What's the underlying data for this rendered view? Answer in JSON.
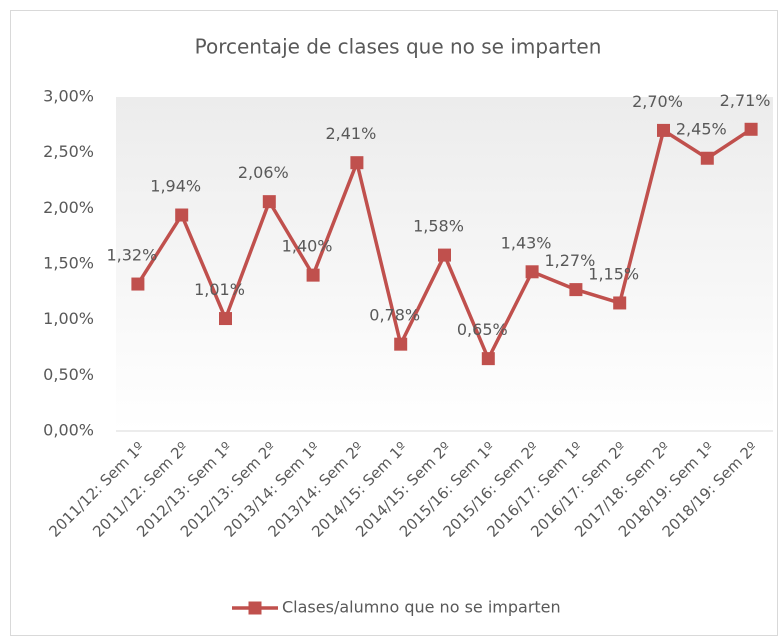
{
  "chart_data": {
    "type": "line",
    "title": "Porcentaje de clases que no se imparten",
    "categories": [
      "2011/12: Sem 1º",
      "2011/12: Sem 2º",
      "2012/13: Sem 1º",
      "2012/13: Sem 2º",
      "2013/14: Sem 1º",
      "2013/14: Sem 2º",
      "2014/15: Sem 1º",
      "2014/15: Sem 2º",
      "2015/16: Sem 1º",
      "2015/16: Sem 2º",
      "2016/17: Sem 1º",
      "2016/17: Sem 2º",
      "2017/18: Sem 2º",
      "2018/19: Sem 1º",
      "2018/19: Sem 2º"
    ],
    "series": [
      {
        "name": "Clases/alumno que no se imparten",
        "color": "#c0504d",
        "values": [
          1.32,
          1.94,
          1.01,
          2.06,
          1.4,
          2.41,
          0.78,
          1.58,
          0.65,
          1.43,
          1.27,
          1.15,
          2.7,
          2.45,
          2.71
        ],
        "value_labels": [
          "1,32%",
          "1,94%",
          "1,01%",
          "2,06%",
          "1,40%",
          "2,41%",
          "0,78%",
          "1,58%",
          "0,65%",
          "1,43%",
          "1,27%",
          "1,15%",
          "2,70%",
          "2,45%",
          "2,71%"
        ]
      }
    ],
    "ylim": [
      0,
      3
    ],
    "yticks": [
      {
        "value": 0,
        "label": "0,00%"
      },
      {
        "value": 0.5,
        "label": "0,50%"
      },
      {
        "value": 1,
        "label": "1,00%"
      },
      {
        "value": 1.5,
        "label": "1,50%"
      },
      {
        "value": 2,
        "label": "2,00%"
      },
      {
        "value": 2.5,
        "label": "2,50%"
      },
      {
        "value": 3,
        "label": "3,00%"
      }
    ],
    "drop_lines": true,
    "legend": "bottom"
  }
}
